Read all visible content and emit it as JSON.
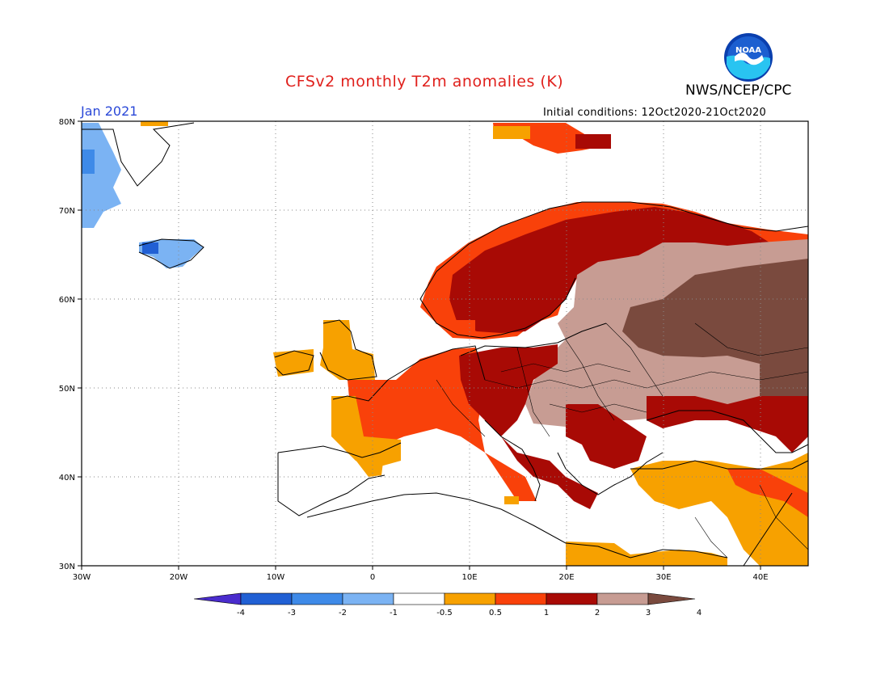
{
  "header": {
    "title": "CFSv2 monthly T2m anomalies (K)",
    "organization": "NWS/NCEP/CPC",
    "valid_month": "Jan 2021",
    "initial_conditions": "Initial conditions: 12Oct2020-21Oct2020",
    "logo_text": "NOAA"
  },
  "map": {
    "lon_range": [
      -30,
      45
    ],
    "lat_range": [
      30,
      80
    ],
    "lat_ticks": [
      "80N",
      "70N",
      "60N",
      "50N",
      "40N",
      "30N"
    ],
    "lon_ticks": [
      "30W",
      "20W",
      "10W",
      "0",
      "10E",
      "20E",
      "30E",
      "40E"
    ]
  },
  "legend": {
    "labels": [
      "-4",
      "-3",
      "-2",
      "-1",
      "-0.5",
      "0.5",
      "1",
      "2",
      "3",
      "4"
    ],
    "colors": [
      "#4a2ccd",
      "#2160d4",
      "#3e8ae8",
      "#7bb3f3",
      "#ffffff",
      "#f7a100",
      "#f9410a",
      "#a80a05",
      "#c79c93",
      "#7a4a3e"
    ]
  }
}
